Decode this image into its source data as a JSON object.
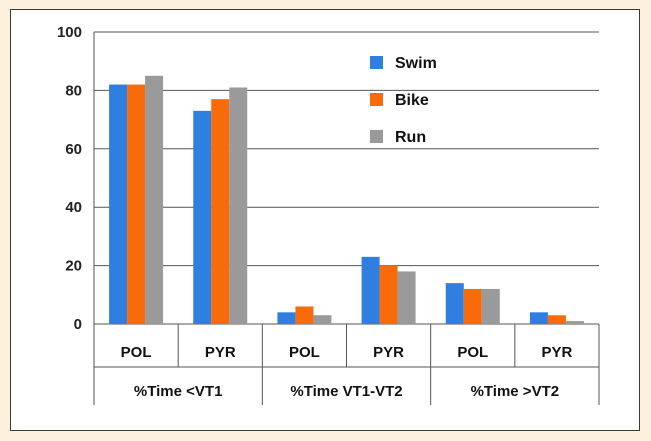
{
  "chart_data": {
    "type": "bar",
    "title": "",
    "xlabel": "",
    "ylabel": "",
    "ylim": [
      0,
      100
    ],
    "yticks": [
      0,
      20,
      40,
      60,
      80,
      100
    ],
    "grid": true,
    "legend_position": "top-right",
    "categories": [
      "POL",
      "PYR",
      "POL",
      "PYR",
      "POL",
      "PYR"
    ],
    "groups": [
      {
        "label": "%Time <VT1",
        "span": 2
      },
      {
        "label": "%Time VT1-VT2",
        "span": 2
      },
      {
        "label": "%Time >VT2",
        "span": 2
      }
    ],
    "series": [
      {
        "name": "Swim",
        "color": "#2e7fe0",
        "values": [
          82,
          73,
          4,
          23,
          14,
          4
        ]
      },
      {
        "name": "Bike",
        "color": "#f96a0a",
        "values": [
          82,
          77,
          6,
          20,
          12,
          3
        ]
      },
      {
        "name": "Run",
        "color": "#9a9a9a",
        "values": [
          85,
          81,
          3,
          18,
          12,
          1
        ]
      }
    ]
  }
}
